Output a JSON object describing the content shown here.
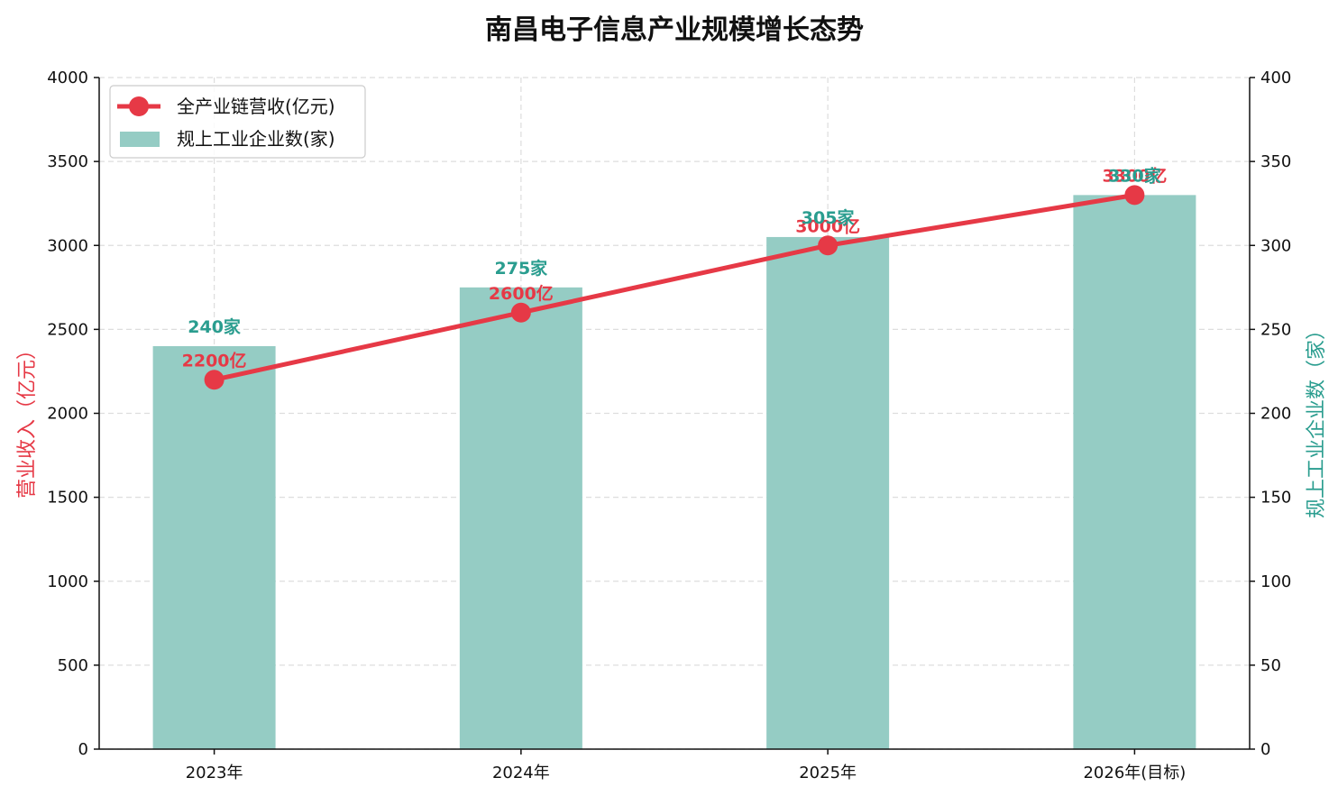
{
  "chart_data": {
    "type": "bar",
    "title": "南昌电子信息产业规模增长态势",
    "categories": [
      "2023年",
      "2024年",
      "2025年",
      "2026年(目标)"
    ],
    "series": [
      {
        "name": "全产业链营收(亿元)",
        "type": "line",
        "axis": "left",
        "values": [
          2200,
          2600,
          3000,
          3300
        ],
        "labels": [
          "2200亿",
          "2600亿",
          "3000亿",
          "3300亿"
        ],
        "color": "#e63946"
      },
      {
        "name": "规上工业企业数(家)",
        "type": "bar",
        "axis": "right",
        "values": [
          240,
          275,
          305,
          330
        ],
        "labels": [
          "240家",
          "275家",
          "305家",
          "330家"
        ],
        "color": "#95ccc4",
        "label_color": "#2a9d8f"
      }
    ],
    "ylabel_left": "营业收入（亿元）",
    "ylabel_right": "规上工业企业数（家）",
    "ylim_left": [
      0,
      4000
    ],
    "ylim_right": [
      0,
      400
    ],
    "yticks_left": [
      "0",
      "500",
      "1000",
      "1500",
      "2000",
      "2500",
      "3000",
      "3500",
      "4000"
    ],
    "yticks_right": [
      "0",
      "50",
      "100",
      "150",
      "200",
      "250",
      "300",
      "350",
      "400"
    ],
    "left_axis_color": "#e63946",
    "right_axis_color": "#2a9d8f",
    "grid": true,
    "legend_position": "top-left"
  }
}
